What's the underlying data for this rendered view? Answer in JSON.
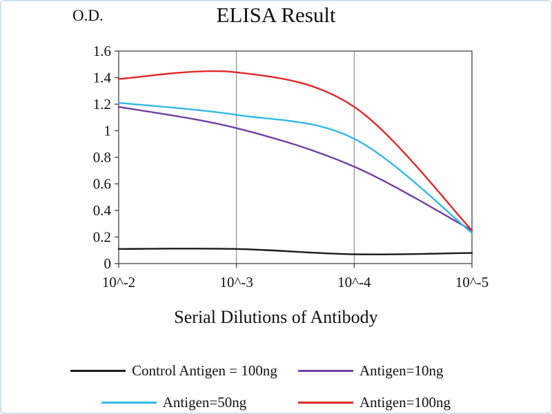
{
  "chart": {
    "od_label": "O.D.",
    "title": "ELISA Result",
    "xlabel": "Serial Dilutions of Antibody"
  },
  "colors": {
    "grid": "#777777",
    "frame": "#333333",
    "tick": "#333333",
    "page_border": "#cfe2f1"
  },
  "chart_data": {
    "type": "line",
    "title": "ELISA Result",
    "ylabel": "O.D.",
    "xlabel": "Serial Dilutions of Antibody",
    "categories": [
      "10^-2",
      "10^-3",
      "10^-4",
      "10^-5"
    ],
    "ylim": [
      0,
      1.6
    ],
    "ytick_step": 0.2,
    "ytick_labels": [
      "0",
      "0.2",
      "0.4",
      "0.6",
      "0.8",
      "1",
      "1.2",
      "1.4",
      "1.6"
    ],
    "grid": "vertical-only",
    "legend_position": "bottom",
    "series": [
      {
        "name": "Control Antigen = 100ng",
        "color": "#1a1a1a",
        "values": [
          0.11,
          0.11,
          0.07,
          0.08
        ]
      },
      {
        "name": "Antigen=10ng",
        "color": "#7040a0",
        "values": [
          1.18,
          1.02,
          0.73,
          0.25
        ]
      },
      {
        "name": "Antigen=50ng",
        "color": "#30b8e8",
        "values": [
          1.21,
          1.12,
          0.94,
          0.23
        ]
      },
      {
        "name": "Antigen=100ng",
        "color": "#e02828",
        "values": [
          1.39,
          1.44,
          1.18,
          0.25
        ]
      }
    ]
  }
}
